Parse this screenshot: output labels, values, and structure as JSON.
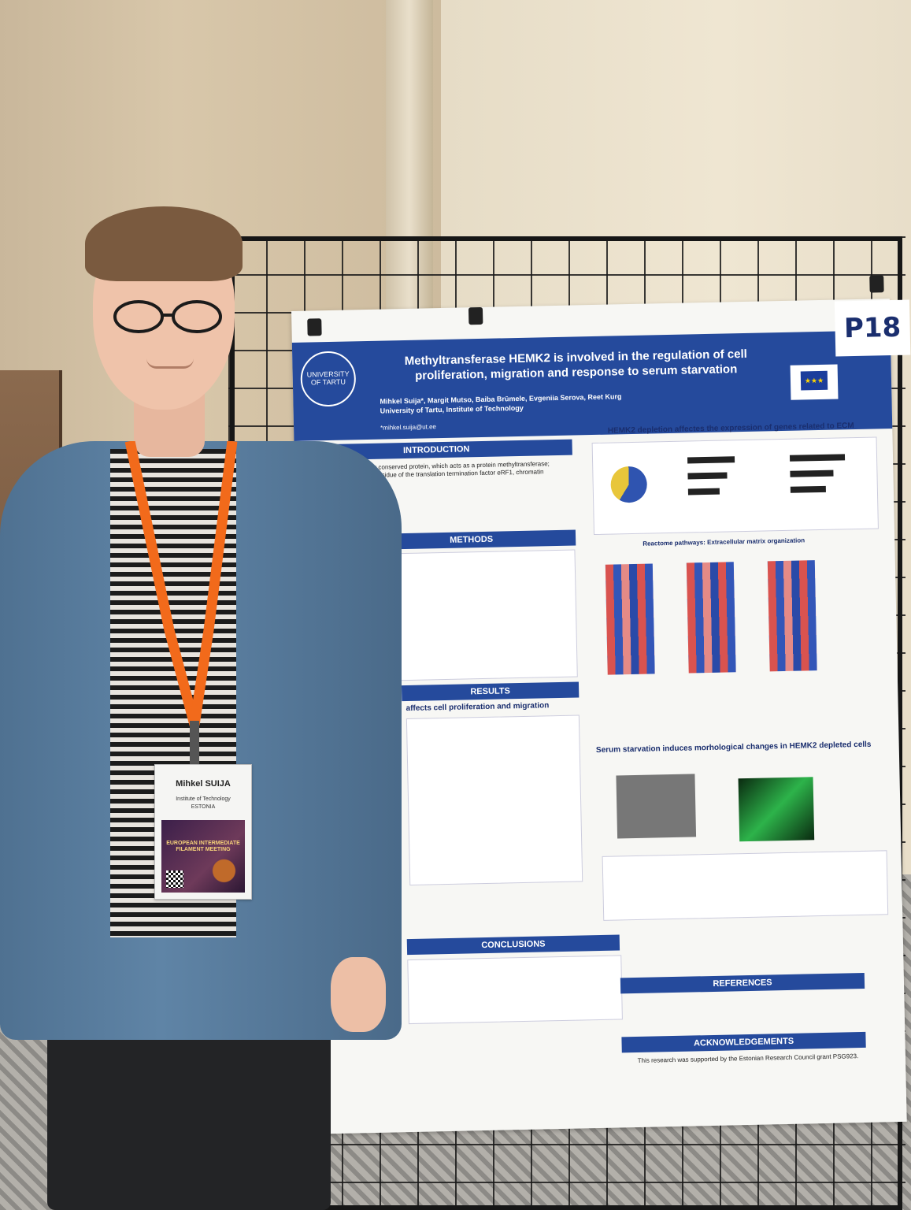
{
  "poster": {
    "number": "P18",
    "title": "Methyltransferase HEMK2 is involved in the regulation of cell proliferation, migration and response to serum starvation",
    "authors": "Mihkel Suija*, Margit Mutso, Baiba Brūmele, Evgeniia Serova, Reet Kurg",
    "affiliation": "University of Tartu, Institute of Technology",
    "email": "*mihkel.suija@ut.ee",
    "logo_text": "UNIVERSITY OF TARTU",
    "sections": {
      "introduction": "INTRODUCTION",
      "methods": "METHODS",
      "results": "RESULTS",
      "conclusions": "CONCLUSIONS",
      "references": "REFERENCES",
      "acknowledgements": "ACKNOWLEDGEMENTS",
      "ecm_heading": "HEMK2 depletion affectes the expression of genes related to ECM",
      "serum_heading": "Serum starvation induces morhological changes in HEMK2 depleted cells",
      "proliferation_heading": "affects cell proliferation and migration",
      "reactome_heading": "Reactome pathways: Extracellular matrix organization"
    },
    "intro_text": "HEMK2 is an evolutionary conserved protein, which acts as a protein methyltransferase; Methylates the glutamine residue of the translation termination factor eRF1, chromatin remodeler CHD5 and NUT.",
    "ack_text": "This research was supported by the Estonian Research Council grant PSG923.",
    "pie": {
      "upregulated": 741,
      "downregulated": 1063
    }
  },
  "badge": {
    "name": "Mihkel SUIJA",
    "institution": "Institute of Technology",
    "country": "ESTONIA",
    "event": "EUROPEAN INTERMEDIATE FILAMENT MEETING"
  },
  "colors": {
    "poster_blue": "#254a9c",
    "lanyard": "#f26a1b",
    "shirt": "#5f84a6"
  }
}
